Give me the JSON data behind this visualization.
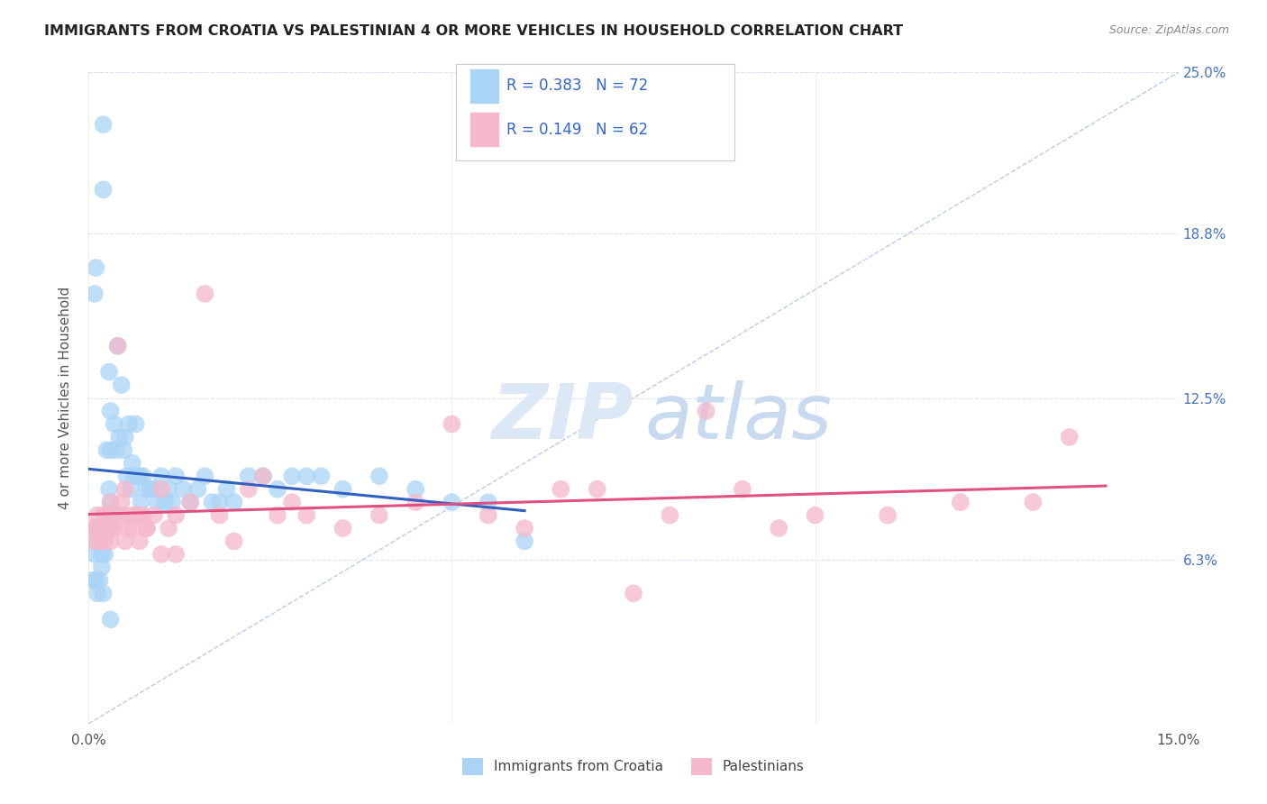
{
  "title": "IMMIGRANTS FROM CROATIA VS PALESTINIAN 4 OR MORE VEHICLES IN HOUSEHOLD CORRELATION CHART",
  "source": "Source: ZipAtlas.com",
  "ylabel": "4 or more Vehicles in Household",
  "xlim": [
    0.0,
    15.0
  ],
  "ylim": [
    0.0,
    25.0
  ],
  "croatia_R": 0.383,
  "croatia_N": 72,
  "palestinians_R": 0.149,
  "palestinians_N": 62,
  "croatia_color": "#aad4f5",
  "palestinians_color": "#f5b8cc",
  "croatia_line_color": "#3060c0",
  "palestinians_line_color": "#e05080",
  "diagonal_color": "#b0c8e8",
  "background_color": "#ffffff",
  "grid_color": "#d8e4f0",
  "croatia_x": [
    0.05,
    0.08,
    0.1,
    0.1,
    0.12,
    0.12,
    0.15,
    0.15,
    0.18,
    0.18,
    0.2,
    0.2,
    0.22,
    0.22,
    0.25,
    0.25,
    0.28,
    0.28,
    0.3,
    0.3,
    0.3,
    0.33,
    0.35,
    0.38,
    0.4,
    0.42,
    0.45,
    0.48,
    0.5,
    0.52,
    0.55,
    0.58,
    0.6,
    0.62,
    0.65,
    0.68,
    0.7,
    0.72,
    0.75,
    0.8,
    0.85,
    0.9,
    0.95,
    1.0,
    1.05,
    1.1,
    1.15,
    1.2,
    1.3,
    1.4,
    1.5,
    1.6,
    1.7,
    1.8,
    1.9,
    2.0,
    2.2,
    2.4,
    2.6,
    2.8,
    3.0,
    3.2,
    3.5,
    4.0,
    4.5,
    5.0,
    5.5,
    6.0,
    0.08,
    0.1,
    0.2,
    0.3
  ],
  "croatia_y": [
    5.5,
    6.5,
    7.5,
    5.5,
    7.0,
    5.0,
    7.5,
    5.5,
    6.5,
    6.0,
    23.0,
    20.5,
    8.0,
    6.5,
    10.5,
    7.5,
    13.5,
    9.0,
    12.0,
    10.5,
    8.5,
    8.0,
    11.5,
    10.5,
    14.5,
    11.0,
    13.0,
    10.5,
    11.0,
    9.5,
    11.5,
    9.0,
    10.0,
    9.5,
    11.5,
    9.5,
    9.5,
    8.5,
    9.5,
    9.0,
    9.0,
    9.0,
    8.5,
    9.5,
    8.5,
    9.0,
    8.5,
    9.5,
    9.0,
    8.5,
    9.0,
    9.5,
    8.5,
    8.5,
    9.0,
    8.5,
    9.5,
    9.5,
    9.0,
    9.5,
    9.5,
    9.5,
    9.0,
    9.5,
    9.0,
    8.5,
    8.5,
    7.0,
    16.5,
    17.5,
    5.0,
    4.0
  ],
  "palestinians_x": [
    0.05,
    0.08,
    0.1,
    0.12,
    0.15,
    0.18,
    0.2,
    0.22,
    0.25,
    0.28,
    0.3,
    0.33,
    0.35,
    0.4,
    0.45,
    0.48,
    0.5,
    0.55,
    0.6,
    0.65,
    0.7,
    0.75,
    0.8,
    0.9,
    1.0,
    1.1,
    1.2,
    1.4,
    1.6,
    1.8,
    2.0,
    2.2,
    2.4,
    2.6,
    2.8,
    3.0,
    3.5,
    4.0,
    4.5,
    5.0,
    5.5,
    6.0,
    6.5,
    7.0,
    7.5,
    8.0,
    8.5,
    9.0,
    9.5,
    10.0,
    11.0,
    12.0,
    13.0,
    13.5,
    0.3,
    0.4,
    0.5,
    0.6,
    0.7,
    0.8,
    1.0,
    1.2
  ],
  "palestinians_y": [
    7.5,
    7.0,
    7.5,
    8.0,
    7.0,
    7.5,
    8.0,
    7.0,
    8.0,
    7.5,
    8.5,
    7.5,
    7.5,
    14.5,
    8.5,
    8.0,
    9.0,
    7.5,
    8.0,
    8.0,
    8.0,
    8.0,
    7.5,
    8.0,
    9.0,
    7.5,
    8.0,
    8.5,
    16.5,
    8.0,
    7.0,
    9.0,
    9.5,
    8.0,
    8.5,
    8.0,
    7.5,
    8.0,
    8.5,
    11.5,
    8.0,
    7.5,
    9.0,
    9.0,
    5.0,
    8.0,
    12.0,
    9.0,
    7.5,
    8.0,
    8.0,
    8.5,
    8.5,
    11.0,
    7.0,
    8.0,
    7.0,
    7.5,
    7.0,
    7.5,
    6.5,
    6.5
  ]
}
